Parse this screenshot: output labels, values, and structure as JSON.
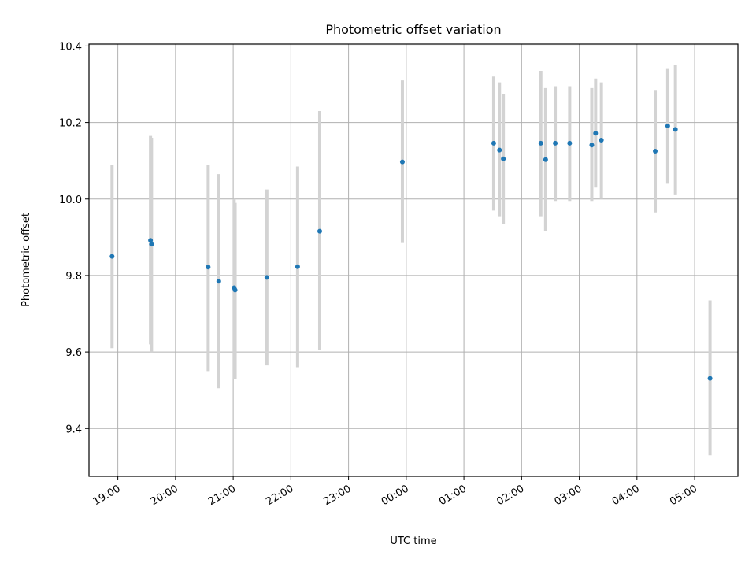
{
  "chart_data": {
    "type": "scatter",
    "title": "Photometric offset variation",
    "xlabel": "UTC time",
    "ylabel": "Photometric offset",
    "x_is_time": true,
    "x_start": "18:30",
    "x_end": "05:45",
    "xticks": [
      "19:00",
      "20:00",
      "21:00",
      "22:00",
      "23:00",
      "00:00",
      "01:00",
      "02:00",
      "03:00",
      "04:00",
      "05:00"
    ],
    "ylim": [
      9.275,
      10.405
    ],
    "yticks": [
      9.4,
      9.6,
      9.8,
      10.0,
      10.2,
      10.4
    ],
    "grid": true,
    "colors": {
      "point": "#1f77b4",
      "errorbar": "#d3d3d3",
      "grid": "#b0b0b0"
    },
    "points": [
      {
        "x": "18:54",
        "y": 9.85,
        "lo": 9.61,
        "hi": 10.09
      },
      {
        "x": "19:34",
        "y": 9.892,
        "lo": 9.62,
        "hi": 10.165
      },
      {
        "x": "19:35",
        "y": 9.882,
        "lo": 9.6,
        "hi": 10.16
      },
      {
        "x": "20:34",
        "y": 9.822,
        "lo": 9.55,
        "hi": 10.09
      },
      {
        "x": "20:45",
        "y": 9.785,
        "lo": 9.505,
        "hi": 10.065
      },
      {
        "x": "21:01",
        "y": 9.768,
        "lo": 9.53,
        "hi": 10.0
      },
      {
        "x": "21:02",
        "y": 9.762,
        "lo": 9.53,
        "hi": 9.99
      },
      {
        "x": "21:35",
        "y": 9.795,
        "lo": 9.565,
        "hi": 10.025
      },
      {
        "x": "22:07",
        "y": 9.823,
        "lo": 9.56,
        "hi": 10.085
      },
      {
        "x": "22:30",
        "y": 9.916,
        "lo": 9.605,
        "hi": 10.23
      },
      {
        "x": "23:56",
        "y": 10.097,
        "lo": 9.885,
        "hi": 10.31
      },
      {
        "x": "01:31",
        "y": 10.146,
        "lo": 9.97,
        "hi": 10.32
      },
      {
        "x": "01:37",
        "y": 10.128,
        "lo": 9.955,
        "hi": 10.305
      },
      {
        "x": "01:41",
        "y": 10.105,
        "lo": 9.935,
        "hi": 10.275
      },
      {
        "x": "02:20",
        "y": 10.146,
        "lo": 9.955,
        "hi": 10.335
      },
      {
        "x": "02:25",
        "y": 10.103,
        "lo": 9.915,
        "hi": 10.29
      },
      {
        "x": "02:35",
        "y": 10.146,
        "lo": 9.995,
        "hi": 10.295
      },
      {
        "x": "02:50",
        "y": 10.146,
        "lo": 9.995,
        "hi": 10.295
      },
      {
        "x": "03:13",
        "y": 10.141,
        "lo": 9.995,
        "hi": 10.29
      },
      {
        "x": "03:17",
        "y": 10.172,
        "lo": 10.03,
        "hi": 10.315
      },
      {
        "x": "03:23",
        "y": 10.154,
        "lo": 10.0,
        "hi": 10.305
      },
      {
        "x": "04:19",
        "y": 10.125,
        "lo": 9.965,
        "hi": 10.285
      },
      {
        "x": "04:32",
        "y": 10.191,
        "lo": 10.04,
        "hi": 10.34
      },
      {
        "x": "04:40",
        "y": 10.182,
        "lo": 10.01,
        "hi": 10.35
      },
      {
        "x": "05:16",
        "y": 9.531,
        "lo": 9.33,
        "hi": 9.735
      }
    ]
  }
}
